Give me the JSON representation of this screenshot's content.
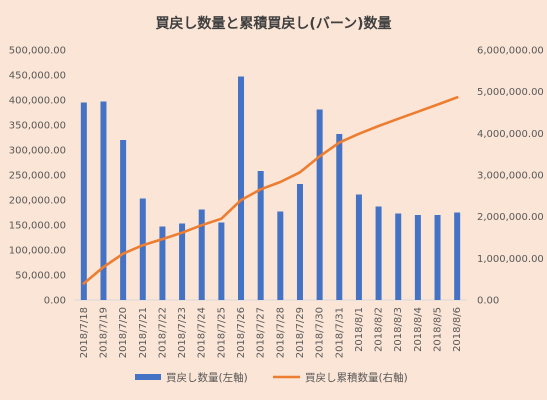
{
  "chart_data": {
    "type": "bar",
    "title": "買戻し数量と累積買戻し(バーン)数量",
    "categories": [
      "2018/7/18",
      "2018/7/19",
      "2018/7/20",
      "2018/7/21",
      "2018/7/22",
      "2018/7/23",
      "2018/7/24",
      "2018/7/25",
      "2018/7/26",
      "2018/7/27",
      "2018/7/28",
      "2018/7/29",
      "2018/7/30",
      "2018/7/31",
      "2018/8/1",
      "2018/8/2",
      "2018/8/3",
      "2018/8/4",
      "2018/8/5",
      "2018/8/6"
    ],
    "series": [
      {
        "name": "買戻し数量(左軸)",
        "type": "bar",
        "axis": "left",
        "color": "#4472c4",
        "values": [
          395000,
          397000,
          320000,
          203000,
          147000,
          153000,
          181000,
          155000,
          447000,
          258000,
          177000,
          232000,
          381000,
          332000,
          211000,
          187000,
          173000,
          170000,
          170000,
          175000
        ]
      },
      {
        "name": "買戻し累積数量(右軸)",
        "type": "line",
        "axis": "right",
        "color": "#ed7d31",
        "values": [
          395000,
          792000,
          1112000,
          1315000,
          1462000,
          1615000,
          1796000,
          1951000,
          2398000,
          2656000,
          2833000,
          3065000,
          3446000,
          3778000,
          3989000,
          4176000,
          4349000,
          4519000,
          4689000,
          4864000
        ]
      }
    ],
    "y_left": {
      "ylim": [
        0,
        500000
      ],
      "ticks": [
        0,
        50000,
        100000,
        150000,
        200000,
        250000,
        300000,
        350000,
        400000,
        450000,
        500000
      ],
      "tick_labels": [
        "0.00",
        "50,000.00",
        "100,000.00",
        "150,000.00",
        "200,000.00",
        "250,000.00",
        "300,000.00",
        "350,000.00",
        "400,000.00",
        "450,000.00",
        "500,000.00"
      ]
    },
    "y_right": {
      "ylim": [
        0,
        6000000
      ],
      "ticks": [
        0,
        1000000,
        2000000,
        3000000,
        4000000,
        5000000,
        6000000
      ],
      "tick_labels": [
        "0.00",
        "1,000,000.00",
        "2,000,000.00",
        "3,000,000.00",
        "4,000,000.00",
        "5,000,000.00",
        "6,000,000.00"
      ]
    },
    "grid": false,
    "legend_position": "bottom",
    "background_color": "#fbe5d6"
  }
}
